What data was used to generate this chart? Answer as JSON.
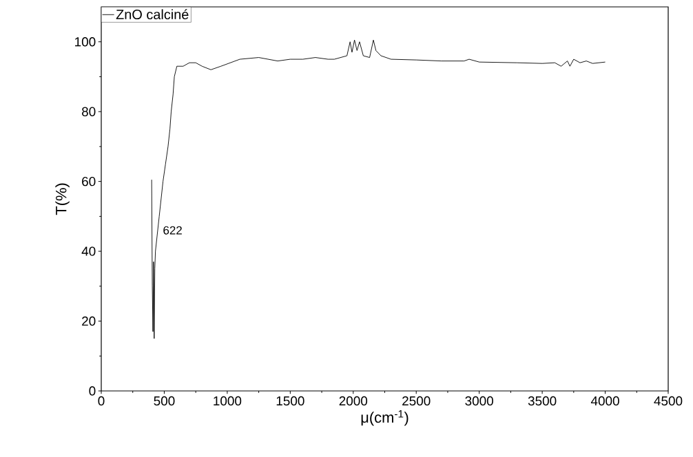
{
  "chart_data": {
    "type": "line",
    "xlabel": "μ(cm$^{-1}$)",
    "ylabel": "T(%)",
    "xlim": [
      0,
      4500
    ],
    "ylim": [
      0,
      110
    ],
    "xticks": [
      0,
      500,
      1000,
      1500,
      2000,
      2500,
      3000,
      3500,
      4000,
      4500
    ],
    "yticks": [
      0,
      20,
      40,
      60,
      80,
      100
    ],
    "grid": false,
    "legend": "top left",
    "marker": "none",
    "line_style": "solid",
    "annotations": [
      {
        "text": "622",
        "x": 470,
        "y": 46
      }
    ],
    "series": [
      {
        "name": "ZnO calciné",
        "color": "#000000",
        "x": [
          400,
          405,
          410,
          415,
          420,
          425,
          430,
          445,
          460,
          475,
          490,
          510,
          530,
          545,
          555,
          570,
          580,
          600,
          650,
          700,
          750,
          800,
          870,
          950,
          1100,
          1250,
          1400,
          1500,
          1600,
          1700,
          1800,
          1850,
          1950,
          1975,
          1990,
          2010,
          2030,
          2050,
          2080,
          2130,
          2160,
          2180,
          2220,
          2300,
          2500,
          2700,
          2880,
          2920,
          3000,
          3300,
          3500,
          3600,
          3650,
          3700,
          3720,
          3750,
          3800,
          3850,
          3900,
          4000
        ],
        "values": [
          60.5,
          30,
          17,
          37,
          15,
          35,
          40,
          45,
          50,
          55,
          60,
          65,
          70,
          75,
          80,
          85,
          90,
          93,
          93,
          94,
          94,
          93,
          92,
          93,
          95,
          95.5,
          94.5,
          95,
          95,
          95.5,
          95,
          95,
          96,
          100,
          97,
          100.5,
          97.5,
          100,
          96,
          95.5,
          100.5,
          97.5,
          96,
          95,
          94.8,
          94.5,
          94.5,
          95,
          94.2,
          94,
          93.8,
          94,
          93,
          94.5,
          93,
          95,
          94,
          94.5,
          93.8,
          94.2
        ]
      }
    ]
  }
}
